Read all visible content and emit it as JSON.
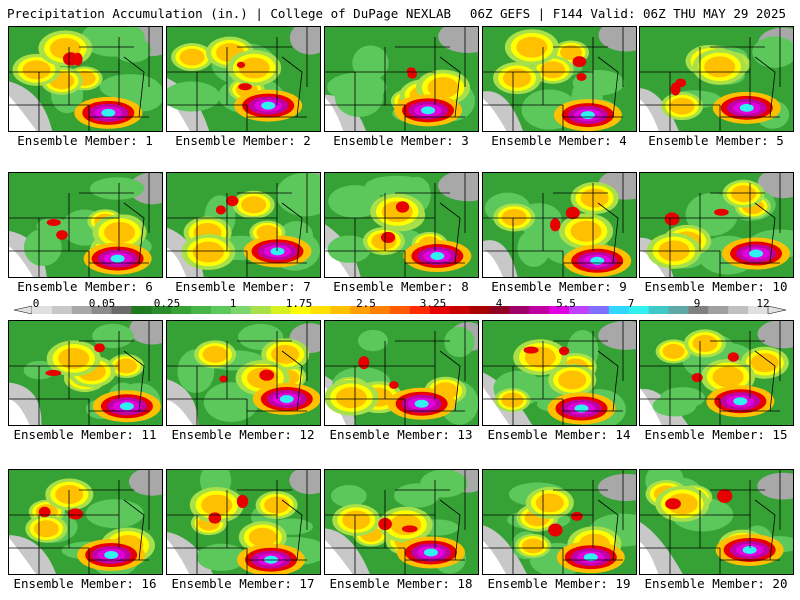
{
  "header": {
    "left": "Precipitation Accumulation (in.) | College of DuPage NEXLAB",
    "right": "06Z GEFS | F144 Valid: 06Z THU MAY 29 2025"
  },
  "colorbar": {
    "tick_labels": [
      "0",
      "0.05",
      "0.25",
      "1",
      "1.75",
      "2.5",
      "3.25",
      "4",
      "5.5",
      "7",
      "9",
      "12"
    ],
    "colors": [
      "#e0e0e0",
      "#c8c8c8",
      "#a8a8a8",
      "#8c8c8c",
      "#6a6a6a",
      "#1e7a1e",
      "#2a8c2a",
      "#36a236",
      "#46b446",
      "#5cc85c",
      "#7cd86c",
      "#a8e04a",
      "#d8f020",
      "#ffff00",
      "#ffe000",
      "#ffc000",
      "#ffa000",
      "#ff8000",
      "#ff5a00",
      "#ff2a00",
      "#e80000",
      "#c80000",
      "#a80000",
      "#900020",
      "#a0006a",
      "#c000a0",
      "#e000e0",
      "#c040ff",
      "#8070ff",
      "#30d8ff",
      "#30f0f0",
      "#40c8c8",
      "#60a8a8",
      "#808080",
      "#a0a0a0",
      "#c0c0c0",
      "#e0e0e0"
    ]
  },
  "panels": [
    {
      "label": "Ensemble Member: 1"
    },
    {
      "label": "Ensemble Member: 2"
    },
    {
      "label": "Ensemble Member: 3"
    },
    {
      "label": "Ensemble Member: 4"
    },
    {
      "label": "Ensemble Member: 5"
    },
    {
      "label": "Ensemble Member: 6"
    },
    {
      "label": "Ensemble Member: 7"
    },
    {
      "label": "Ensemble Member: 8"
    },
    {
      "label": "Ensemble Member: 9"
    },
    {
      "label": "Ensemble Member: 10"
    },
    {
      "label": "Ensemble Member: 11"
    },
    {
      "label": "Ensemble Member: 12"
    },
    {
      "label": "Ensemble Member: 13"
    },
    {
      "label": "Ensemble Member: 14"
    },
    {
      "label": "Ensemble Member: 15"
    },
    {
      "label": "Ensemble Member: 16"
    },
    {
      "label": "Ensemble Member: 17"
    },
    {
      "label": "Ensemble Member: 18"
    },
    {
      "label": "Ensemble Member: 19"
    },
    {
      "label": "Ensemble Member: 20"
    }
  ]
}
